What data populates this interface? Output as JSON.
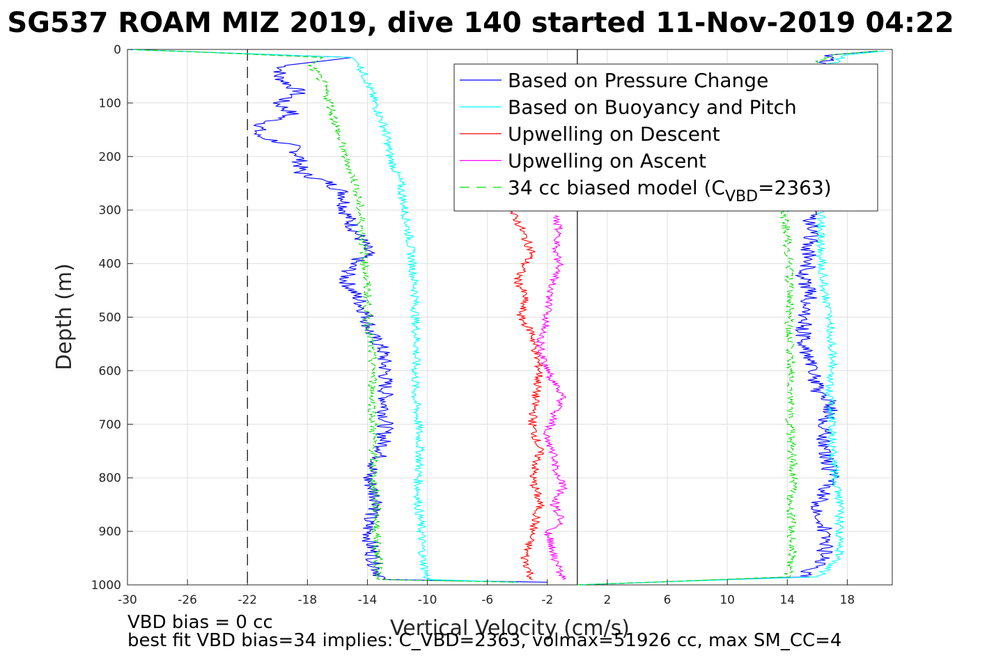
{
  "chart_data": {
    "type": "line",
    "title": "SG537 ROAM MIZ 2019, dive 140 started 11-Nov-2019 04:22",
    "xlabel": "Vertical Velocity (cm/s)",
    "ylabel": "Depth (m)",
    "xlim": [
      -30,
      21
    ],
    "ylim": [
      1000,
      0
    ],
    "y_reversed": true,
    "grid": true,
    "legend_position": "top-right",
    "xticks": [
      "-30",
      "-26",
      "-22",
      "-18",
      "-14",
      "-10",
      "-6",
      "-2",
      "2",
      "6",
      "10",
      "14",
      "18"
    ],
    "xtick_values": [
      -30,
      -26,
      -22,
      -18,
      -14,
      -10,
      -6,
      -2,
      2,
      6,
      10,
      14,
      18
    ],
    "yticks": [
      "0",
      "100",
      "200",
      "300",
      "400",
      "500",
      "600",
      "700",
      "800",
      "900",
      "1000"
    ],
    "ytick_values": [
      0,
      100,
      200,
      300,
      400,
      500,
      600,
      700,
      800,
      900,
      1000
    ],
    "reference_lines": [
      {
        "orientation": "vertical",
        "x": -22,
        "style": "dashed",
        "color": "#000000"
      },
      {
        "orientation": "vertical",
        "x": 0,
        "style": "solid",
        "color": "#000000"
      }
    ],
    "series": [
      {
        "name": "Based on Pressure Change",
        "color": "#0000ff",
        "style": "solid",
        "descent": {
          "depth": [
            0,
            5,
            15,
            30,
            50,
            80,
            100,
            120,
            140,
            160,
            180,
            200,
            230,
            250,
            270,
            300,
            330,
            360,
            380,
            400,
            430,
            470,
            500,
            530,
            560,
            600,
            650,
            700,
            750,
            800,
            850,
            880,
            920,
            960,
            990,
            995
          ],
          "v": [
            -30,
            -25,
            -15,
            -19.5,
            -20,
            -18.5,
            -20,
            -19,
            -21,
            -21.5,
            -19,
            -18.5,
            -18.5,
            -16.5,
            -15.5,
            -15.5,
            -15,
            -14.3,
            -14,
            -15,
            -15.5,
            -14.5,
            -14,
            -13.8,
            -13,
            -12.8,
            -12.8,
            -12.8,
            -13,
            -14,
            -13.2,
            -14,
            -13.8,
            -13.5,
            -13,
            -2
          ]
        },
        "ascent": {
          "depth": [
            1000,
            995,
            985,
            950,
            900,
            850,
            800,
            750,
            700,
            660,
            640,
            600,
            550,
            500,
            460,
            420,
            400,
            370,
            340,
            310,
            30,
            10,
            3
          ],
          "v": [
            0,
            5,
            15,
            16.5,
            16.5,
            16,
            17,
            16.5,
            16.5,
            17,
            16,
            15.8,
            15,
            15.2,
            15.5,
            15,
            15.5,
            15.4,
            15.7,
            15.5,
            16.5,
            17,
            20
          ]
        }
      },
      {
        "name": "Based on Buoyancy and Pitch",
        "color": "#00ffff",
        "style": "solid",
        "descent": {
          "depth": [
            0,
            5,
            15,
            30,
            60,
            100,
            150,
            200,
            250,
            300,
            350,
            400,
            450,
            500,
            550,
            600,
            650,
            700,
            750,
            800,
            850,
            900,
            950,
            990,
            995
          ],
          "v": [
            -30,
            -25,
            -15,
            -14.5,
            -14,
            -13.5,
            -12.8,
            -12.5,
            -11.8,
            -11.5,
            -11.2,
            -11,
            -10.8,
            -10.8,
            -10.7,
            -10.8,
            -10.8,
            -10.6,
            -10.5,
            -10.6,
            -10.6,
            -10.4,
            -10.3,
            -10,
            -4
          ]
        },
        "ascent": {
          "depth": [
            1000,
            995,
            985,
            950,
            900,
            850,
            800,
            750,
            700,
            650,
            600,
            550,
            500,
            450,
            400,
            350,
            320,
            30,
            10,
            3
          ],
          "v": [
            0,
            5,
            16,
            17.5,
            17.5,
            17.5,
            17.2,
            17,
            17,
            16.8,
            17,
            17,
            16.8,
            16.5,
            16.3,
            16.2,
            16.3,
            16.8,
            18,
            20.5
          ]
        }
      },
      {
        "name": "Upwelling on Descent",
        "color": "#ff0000",
        "style": "solid",
        "descent": {
          "depth": [
            300,
            320,
            350,
            380,
            400,
            430,
            460,
            500,
            530,
            560,
            600,
            650,
            700,
            750,
            800,
            850,
            900,
            950,
            990
          ],
          "v": [
            -4.5,
            -4,
            -3.5,
            -3,
            -3.5,
            -4,
            -3.5,
            -3.8,
            -3,
            -2.8,
            -2.5,
            -2.8,
            -3,
            -2.5,
            -3,
            -2.5,
            -3,
            -3.5,
            -3
          ]
        }
      },
      {
        "name": "Upwelling on Ascent",
        "color": "#ff00ff",
        "style": "solid",
        "ascent": {
          "depth": [
            990,
            950,
            900,
            880,
            850,
            820,
            770,
            720,
            680,
            650,
            600,
            550,
            500,
            450,
            400,
            370,
            340,
            310
          ],
          "v": [
            -1,
            -1.5,
            -2,
            -1,
            -1.5,
            -1,
            -1.5,
            -2,
            -1.5,
            -1,
            -2,
            -2.5,
            -2,
            -1.8,
            -1.2,
            -1.5,
            -1.2,
            -1.5
          ]
        }
      },
      {
        "name": "34 cc biased model (C",
        "name_sub": "VBD",
        "name_suffix": "=2363)",
        "color": "#00dd00",
        "style": "dashed",
        "descent": {
          "depth": [
            0,
            5,
            15,
            30,
            60,
            100,
            150,
            200,
            250,
            300,
            350,
            400,
            450,
            500,
            550,
            600,
            650,
            700,
            750,
            800,
            850,
            900,
            950,
            990,
            995
          ],
          "v": [
            -30,
            -25,
            -17,
            -17.8,
            -17,
            -16.5,
            -16,
            -15.5,
            -14.8,
            -14.5,
            -14.3,
            -14.2,
            -14,
            -14,
            -13.8,
            -13.6,
            -13.7,
            -13.6,
            -13.6,
            -13.6,
            -13.4,
            -13.4,
            -13.3,
            -13.2,
            -4
          ]
        },
        "ascent": {
          "depth": [
            1000,
            995,
            985,
            950,
            900,
            850,
            800,
            750,
            700,
            650,
            600,
            550,
            500,
            450,
            400,
            350,
            310,
            30,
            10,
            3
          ],
          "v": [
            0,
            5,
            14,
            14.3,
            14.3,
            14.2,
            14.4,
            14.3,
            14.2,
            14.2,
            14.3,
            14.2,
            14.1,
            14.2,
            14.1,
            14,
            13.8,
            15.5,
            17,
            20
          ]
        }
      }
    ],
    "footnotes": [
      "VBD bias = 0 cc",
      "best fit VBD bias=34 implies: C_VBD=2363, volmax=51926 cc, max SM_CC=4"
    ]
  }
}
